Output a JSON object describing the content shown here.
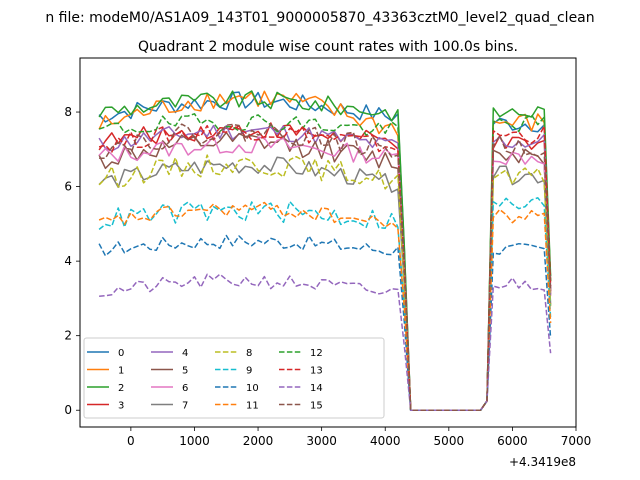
{
  "window": {
    "suptitle": "n file: modeM0/AS1A09_143T01_9000005870_43363cztM0_level2_quad_clean"
  },
  "chart_data": {
    "type": "line",
    "title": "Quadrant 2 module wise count rates with 100.0s bins.",
    "xlabel": "",
    "ylabel": "",
    "x_offset_label": "+4.3419e8",
    "xlim": [
      -800,
      7000
    ],
    "ylim": [
      -0.45,
      9.45
    ],
    "xticks": [
      0,
      1000,
      2000,
      3000,
      4000,
      5000,
      6000,
      7000
    ],
    "yticks": [
      0,
      2,
      4,
      6,
      8
    ],
    "grid": false,
    "legend": {
      "placement": "lower-left",
      "columns": 5
    },
    "segments": [
      {
        "x_start": -500,
        "x_end": 4200,
        "step": 100
      },
      {
        "x": [
          4300,
          4400
        ]
      },
      {
        "x_start": 4500,
        "x_end": 5500,
        "step": 100,
        "zero": true
      },
      {
        "x": [
          5600,
          5700
        ]
      },
      {
        "x_start": 5800,
        "x_end": 6500,
        "step": 100
      },
      {
        "x": [
          6600
        ]
      }
    ],
    "series": [
      {
        "name": "0",
        "color": "#1f77b4",
        "dash": "solid",
        "level1": 7.9,
        "level2": 7.7,
        "jitter": 0.25,
        "rise": 0.5
      },
      {
        "name": "1",
        "color": "#ff7f0e",
        "dash": "solid",
        "level1": 7.6,
        "level2": 7.7,
        "jitter": 0.3,
        "rise": 1.0
      },
      {
        "name": "2",
        "color": "#2ca02c",
        "dash": "solid",
        "level1": 8.0,
        "level2": 8.0,
        "jitter": 0.25,
        "rise": 0.4
      },
      {
        "name": "3",
        "color": "#d62728",
        "dash": "solid",
        "level1": 7.2,
        "level2": 7.1,
        "jitter": 0.25,
        "rise": 0.4
      },
      {
        "name": "4",
        "color": "#9467bd",
        "dash": "solid",
        "level1": 7.1,
        "level2": 7.2,
        "jitter": 0.25,
        "rise": 0.5
      },
      {
        "name": "5",
        "color": "#8c564b",
        "dash": "solid",
        "level1": 6.7,
        "level2": 6.9,
        "jitter": 0.3,
        "rise": 0.6
      },
      {
        "name": "6",
        "color": "#e377c2",
        "dash": "solid",
        "level1": 6.8,
        "level2": 6.8,
        "jitter": 0.25,
        "rise": 0.4
      },
      {
        "name": "7",
        "color": "#7f7f7f",
        "dash": "solid",
        "level1": 6.1,
        "level2": 6.3,
        "jitter": 0.25,
        "rise": 0.6
      },
      {
        "name": "8",
        "color": "#bcbd22",
        "dash": "dashed",
        "level1": 6.2,
        "level2": 6.2,
        "jitter": 0.3,
        "rise": 0.5
      },
      {
        "name": "9",
        "color": "#17becf",
        "dash": "dashed",
        "level1": 5.1,
        "level2": 5.5,
        "jitter": 0.3,
        "rise": 0.3
      },
      {
        "name": "10",
        "color": "#1f77b4",
        "dash": "dashed",
        "level1": 4.3,
        "level2": 4.3,
        "jitter": 0.2,
        "rise": 0.3
      },
      {
        "name": "11",
        "color": "#ff7f0e",
        "dash": "dashed",
        "level1": 5.0,
        "level2": 5.2,
        "jitter": 0.2,
        "rise": 0.5
      },
      {
        "name": "12",
        "color": "#2ca02c",
        "dash": "dashed",
        "level1": 7.5,
        "level2": 7.7,
        "jitter": 0.25,
        "rise": 0.3
      },
      {
        "name": "13",
        "color": "#d62728",
        "dash": "dashed",
        "level1": 7.1,
        "level2": 7.4,
        "jitter": 0.25,
        "rise": 0.5
      },
      {
        "name": "14",
        "color": "#9467bd",
        "dash": "dashed",
        "level1": 3.15,
        "level2": 3.4,
        "jitter": 0.2,
        "rise": 0.4
      },
      {
        "name": "15",
        "color": "#8c564b",
        "dash": "dashed",
        "level1": 7.0,
        "level2": 7.1,
        "jitter": 0.3,
        "rise": 0.6
      }
    ]
  }
}
